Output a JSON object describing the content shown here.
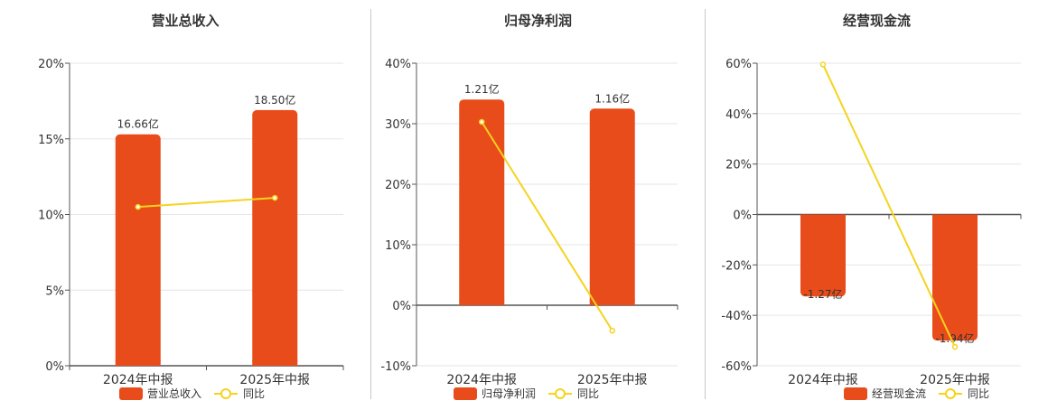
{
  "colors": {
    "bar": "#e84c1a",
    "line": "#f5d31e",
    "grid": "#e6e6e6",
    "axis": "#555555",
    "text": "#333333"
  },
  "legend_line_label": "同比",
  "chart_data": [
    {
      "type": "bar",
      "title": "营业总收入",
      "categories": [
        "2024年中报",
        "2025年中报"
      ],
      "series": [
        {
          "name": "营业总收入",
          "type": "bar",
          "values": [
            16.66,
            18.5
          ],
          "labels": [
            "16.66亿",
            "18.50亿"
          ],
          "heights_pct": [
            15.3,
            16.9
          ]
        },
        {
          "name": "同比",
          "type": "line",
          "values": [
            10.5,
            11.1
          ]
        }
      ],
      "yticks": [
        "20%",
        "15%",
        "10%",
        "5%",
        "0%"
      ],
      "ylim": [
        0,
        20
      ],
      "grid": true,
      "legend": "bottom"
    },
    {
      "type": "bar",
      "title": "归母净利润",
      "categories": [
        "2024年中报",
        "2025年中报"
      ],
      "series": [
        {
          "name": "归母净利润",
          "type": "bar",
          "values": [
            1.21,
            1.16
          ],
          "labels": [
            "1.21亿",
            "1.16亿"
          ],
          "heights_pct": [
            34,
            32.5
          ]
        },
        {
          "name": "同比",
          "type": "line",
          "values": [
            30.3,
            -4.2
          ]
        }
      ],
      "yticks": [
        "40%",
        "30%",
        "20%",
        "10%",
        "0%",
        "-10%"
      ],
      "ylim": [
        -10,
        40
      ],
      "grid": true,
      "legend": "bottom"
    },
    {
      "type": "bar",
      "title": "经营现金流",
      "categories": [
        "2024年中报",
        "2025年中报"
      ],
      "series": [
        {
          "name": "经营现金流",
          "type": "bar",
          "values": [
            -1.27,
            -1.94
          ],
          "labels": [
            "-1.27亿",
            "-1.94亿"
          ],
          "heights_pct": [
            -32.5,
            -50
          ]
        },
        {
          "name": "同比",
          "type": "line",
          "values": [
            59.5,
            -52.5
          ]
        }
      ],
      "yticks": [
        "60%",
        "40%",
        "20%",
        "0%",
        "-20%",
        "-40%",
        "-60%"
      ],
      "ylim": [
        -60,
        60
      ],
      "grid": true,
      "legend": "bottom"
    }
  ]
}
